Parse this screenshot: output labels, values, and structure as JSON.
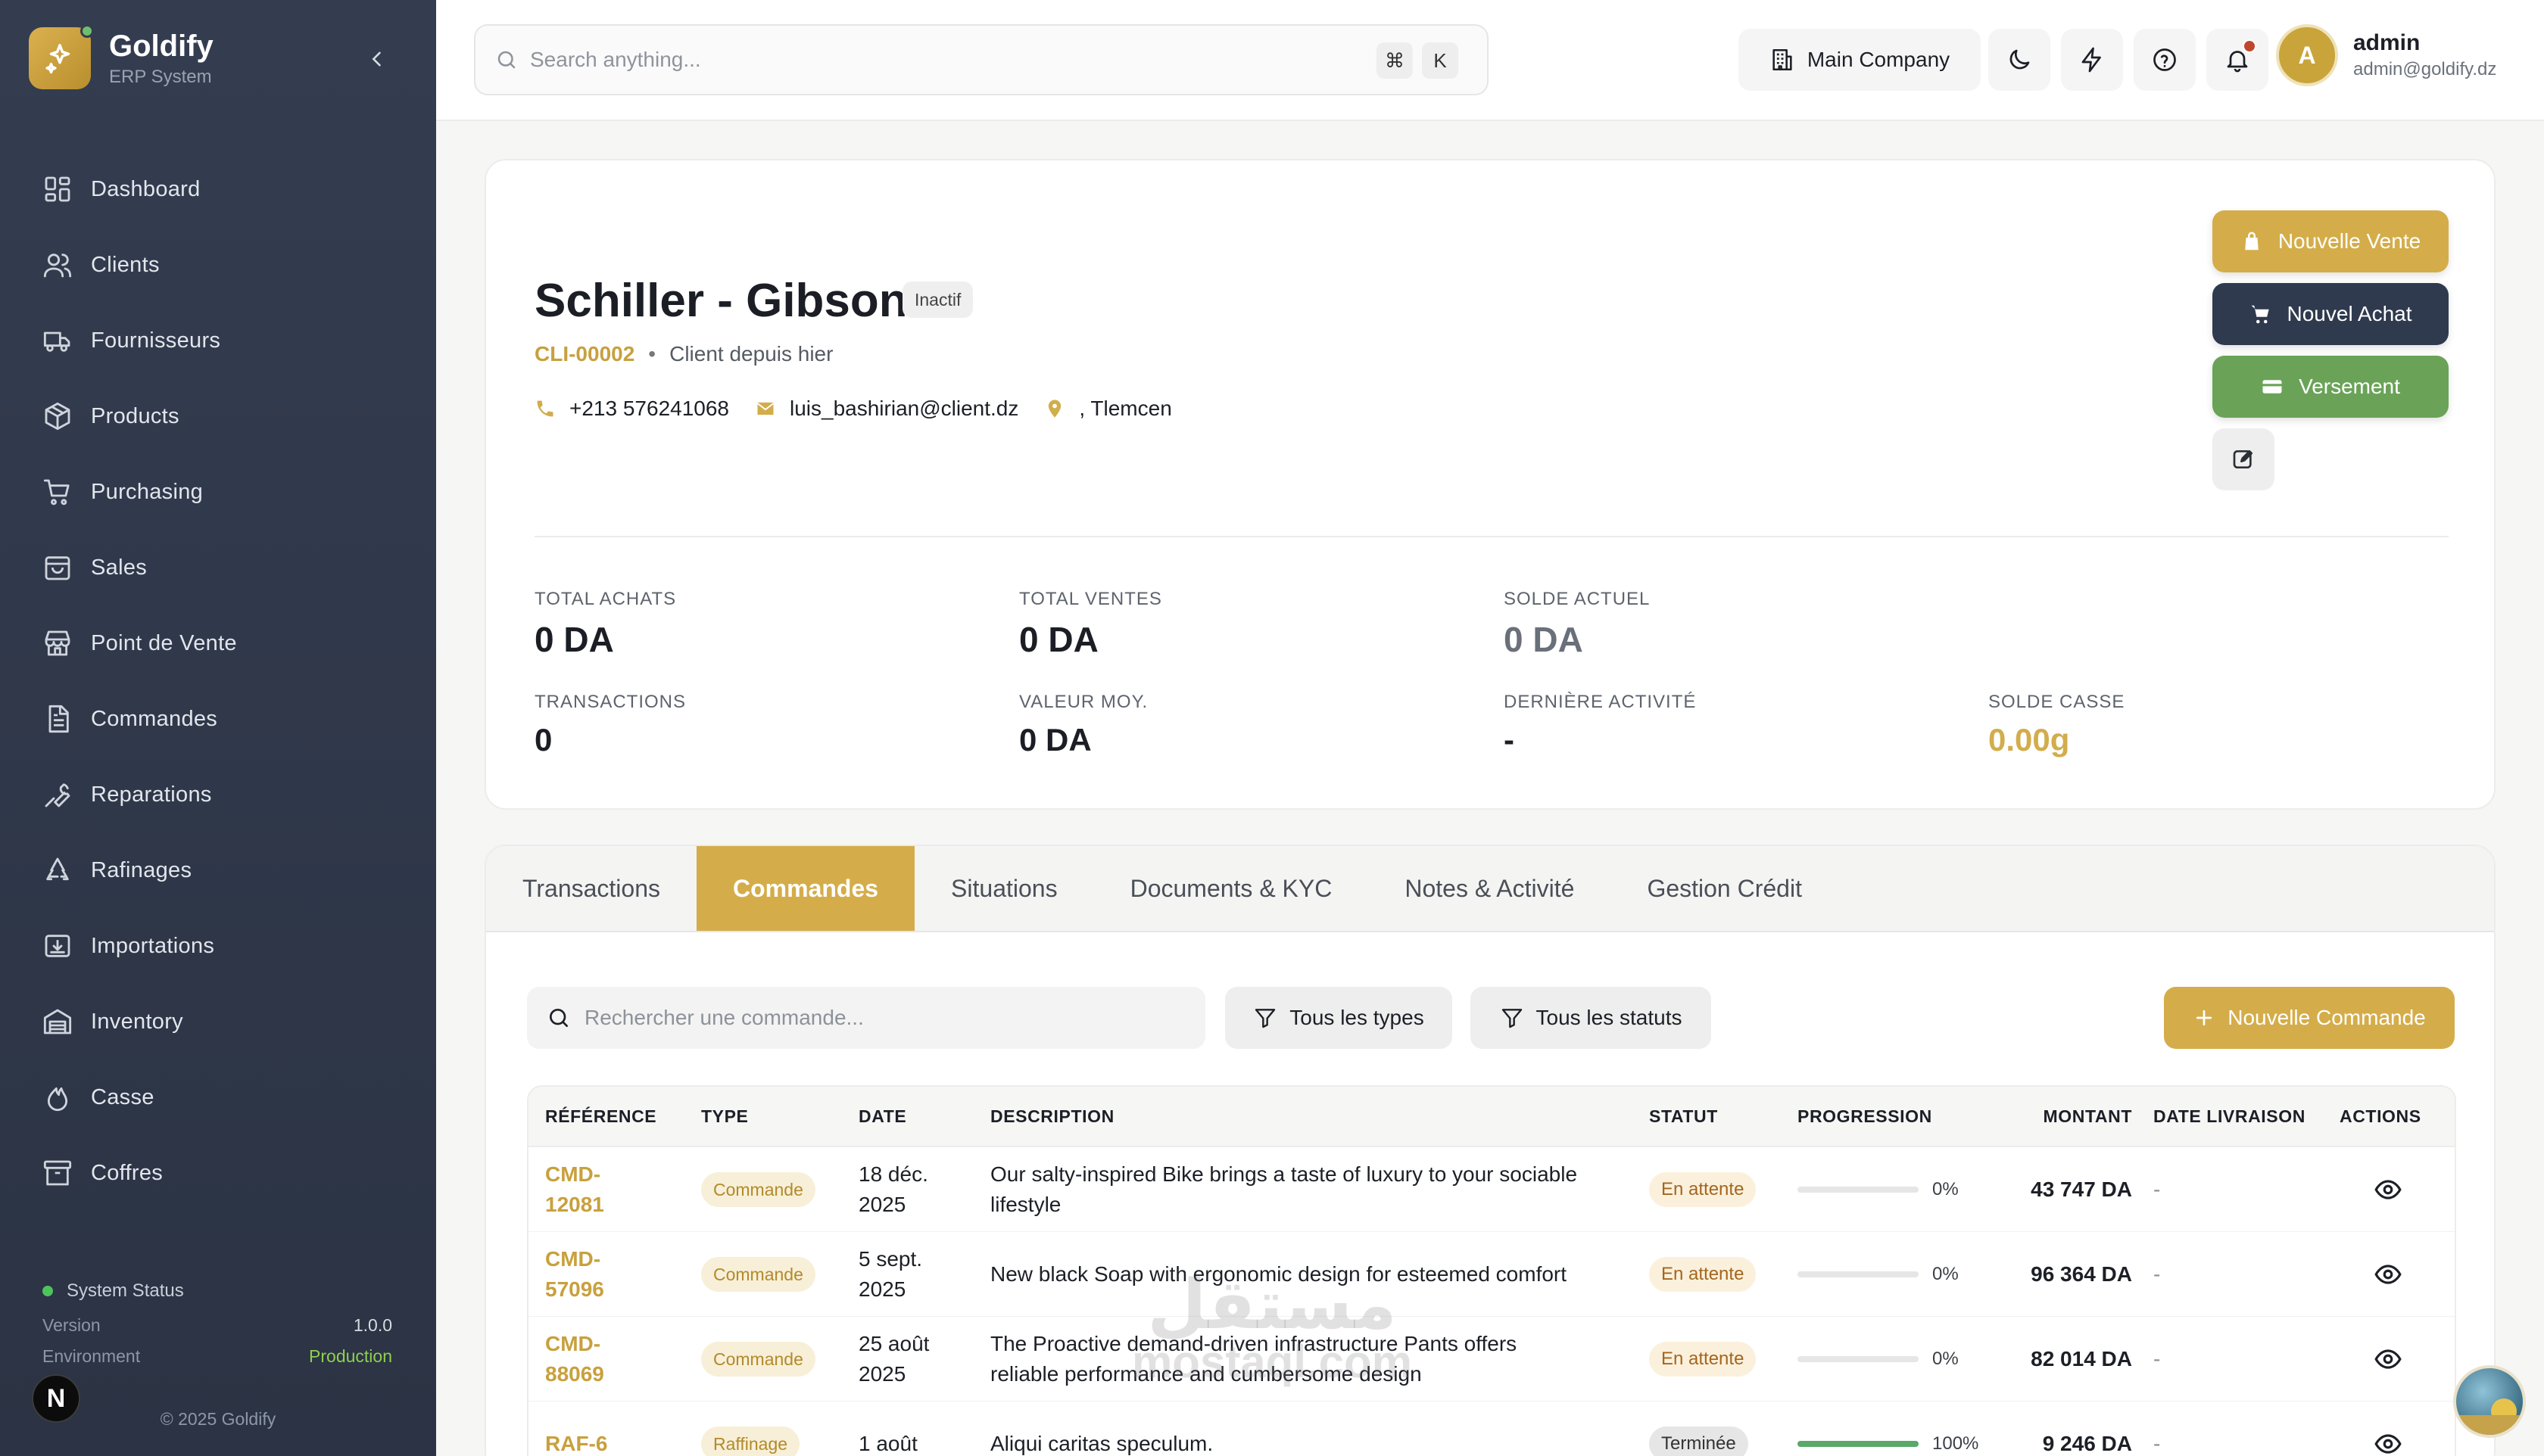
{
  "brand": {
    "name": "Goldify",
    "subtitle": "ERP System"
  },
  "sidebar": {
    "items": [
      {
        "label": "Dashboard",
        "icon": "dashboard-icon"
      },
      {
        "label": "Clients",
        "icon": "users-icon"
      },
      {
        "label": "Fournisseurs",
        "icon": "truck-icon"
      },
      {
        "label": "Products",
        "icon": "package-icon"
      },
      {
        "label": "Purchasing",
        "icon": "cart-icon"
      },
      {
        "label": "Sales",
        "icon": "shopping-bag-icon"
      },
      {
        "label": "Point de Vente",
        "icon": "store-icon"
      },
      {
        "label": "Commandes",
        "icon": "document-icon"
      },
      {
        "label": "Reparations",
        "icon": "wrench-icon"
      },
      {
        "label": "Rafinages",
        "icon": "recycle-icon"
      },
      {
        "label": "Importations",
        "icon": "import-icon"
      },
      {
        "label": "Inventory",
        "icon": "warehouse-icon"
      },
      {
        "label": "Casse",
        "icon": "flame-icon"
      },
      {
        "label": "Coffres",
        "icon": "archive-icon"
      }
    ],
    "system_status": {
      "title": "System Status",
      "version_label": "Version",
      "version": "1.0.0",
      "environment_label": "Environment",
      "environment": "Production"
    },
    "copyright": "© 2025 Goldify",
    "n_badge": "N"
  },
  "topbar": {
    "search_placeholder": "Search anything...",
    "shortcut_cmd": "⌘",
    "shortcut_key": "K",
    "company": "Main Company",
    "user": {
      "initial": "A",
      "name": "admin",
      "email": "admin@goldify.dz"
    }
  },
  "client": {
    "name": "Schiller - Gibson",
    "status": "Inactif",
    "reference": "CLI-00002",
    "since": "Client depuis hier",
    "phone": "+213 576241068",
    "email": "luis_bashirian@client.dz",
    "address": ", Tlemcen"
  },
  "actions": {
    "new_sale": "Nouvelle Vente",
    "new_purchase": "Nouvel Achat",
    "payment": "Versement"
  },
  "stats": {
    "total_achats": {
      "label": "TOTAL ACHATS",
      "value": "0 DA"
    },
    "total_ventes": {
      "label": "TOTAL VENTES",
      "value": "0 DA"
    },
    "solde_actuel": {
      "label": "SOLDE ACTUEL",
      "value": "0 DA"
    },
    "transactions": {
      "label": "TRANSACTIONS",
      "value": "0"
    },
    "valeur_moy": {
      "label": "VALEUR MOY.",
      "value": "0 DA"
    },
    "derniere_activite": {
      "label": "DERNIÈRE ACTIVITÉ",
      "value": "-"
    },
    "solde_casse": {
      "label": "SOLDE CASSE",
      "value": "0.00g"
    }
  },
  "tabs": [
    "Transactions",
    "Commandes",
    "Situations",
    "Documents & KYC",
    "Notes & Activité",
    "Gestion Crédit"
  ],
  "active_tab": "Commandes",
  "orders": {
    "search_placeholder": "Rechercher une commande...",
    "filter_types": "Tous les types",
    "filter_status": "Tous les statuts",
    "new_order": "Nouvelle Commande",
    "columns": [
      "RÉFÉRENCE",
      "TYPE",
      "DATE",
      "DESCRIPTION",
      "STATUT",
      "PROGRESSION",
      "MONTANT",
      "DATE LIVRAISON",
      "ACTIONS"
    ],
    "rows": [
      {
        "ref_a": "CMD-",
        "ref_b": "12081",
        "type": "Commande",
        "date_a": "18 déc.",
        "date_b": "2025",
        "desc_a": "Our salty-inspired Bike brings a taste of luxury to your sociable",
        "desc_b": "lifestyle",
        "status": "En attente",
        "progress": 0,
        "progress_label": "0%",
        "amount": "43 747 DA",
        "delivery": "-"
      },
      {
        "ref_a": "CMD-",
        "ref_b": "57096",
        "type": "Commande",
        "date_a": "5 sept.",
        "date_b": "2025",
        "desc_a": "New black Soap with ergonomic design for esteemed comfort",
        "desc_b": "",
        "status": "En attente",
        "progress": 0,
        "progress_label": "0%",
        "amount": "96 364 DA",
        "delivery": "-"
      },
      {
        "ref_a": "CMD-",
        "ref_b": "88069",
        "type": "Commande",
        "date_a": "25 août",
        "date_b": "2025",
        "desc_a": "The Proactive demand-driven infrastructure Pants offers",
        "desc_b": "reliable performance and cumbersome design",
        "status": "En attente",
        "progress": 0,
        "progress_label": "0%",
        "amount": "82 014 DA",
        "delivery": "-"
      },
      {
        "ref_a": "RAF-6",
        "ref_b": "",
        "type": "Raffinage",
        "date_a": "1 août",
        "date_b": "",
        "desc_a": "Aliqui caritas speculum.",
        "desc_b": "",
        "status": "Terminée",
        "progress": 100,
        "progress_label": "100%",
        "amount": "9 246 DA",
        "delivery": "-"
      }
    ]
  },
  "watermark": {
    "arabic": "مستقل",
    "latin": "mostaql.com"
  },
  "colors": {
    "gold": "#d4ad4a",
    "dark": "#2f3a4e",
    "green": "#6aa358",
    "sidebar": "#343d50"
  }
}
